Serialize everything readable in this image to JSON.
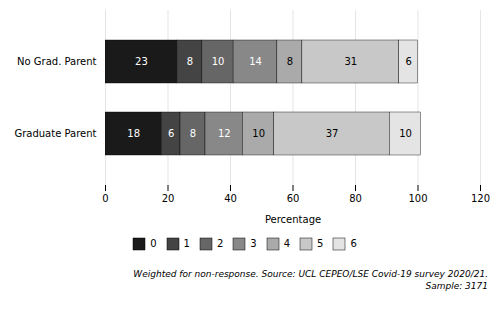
{
  "chart_data": {
    "type": "bar",
    "orientation": "horizontal",
    "stacked": true,
    "categories": [
      "Graduate Parent",
      "No Grad. Parent"
    ],
    "series": [
      {
        "name": "0",
        "color": "#1a1a1a",
        "values": [
          18,
          23
        ]
      },
      {
        "name": "1",
        "color": "#444444",
        "values": [
          6,
          8
        ]
      },
      {
        "name": "2",
        "color": "#666666",
        "values": [
          8,
          10
        ]
      },
      {
        "name": "3",
        "color": "#888888",
        "values": [
          12,
          14
        ]
      },
      {
        "name": "4",
        "color": "#aaaaaa",
        "values": [
          10,
          8
        ]
      },
      {
        "name": "5",
        "color": "#c8c8c8",
        "values": [
          37,
          31
        ]
      },
      {
        "name": "6",
        "color": "#e4e4e4",
        "values": [
          10,
          6
        ]
      }
    ],
    "xlabel": "Percentage",
    "xlim": [
      0,
      120
    ],
    "xticks": [
      0,
      20,
      40,
      60,
      80,
      100,
      120
    ],
    "grid": true,
    "legend": "bottom",
    "data_labels": true,
    "annotations": [
      "Weighted for non-response. Source: UCL CEPEO/LSE Covid-19 survey 2020/21.",
      "Sample: 3171"
    ]
  }
}
